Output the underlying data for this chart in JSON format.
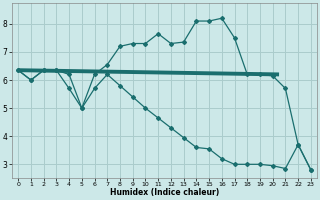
{
  "xlabel": "Humidex (Indice chaleur)",
  "background_color": "#cce8e8",
  "grid_color": "#aacccc",
  "line_color": "#1a6e6e",
  "xlim": [
    -0.5,
    23.5
  ],
  "ylim": [
    2.5,
    8.75
  ],
  "yticks": [
    3,
    4,
    5,
    6,
    7,
    8
  ],
  "xticks": [
    0,
    1,
    2,
    3,
    4,
    5,
    6,
    7,
    8,
    9,
    10,
    11,
    12,
    13,
    14,
    15,
    16,
    17,
    18,
    19,
    20,
    21,
    22,
    23
  ],
  "line1_x": [
    0,
    1,
    2,
    3,
    4,
    5,
    6,
    7,
    8,
    9,
    10,
    11,
    12,
    13,
    14,
    15,
    16,
    17,
    18,
    19,
    20,
    21,
    22,
    23
  ],
  "line1_y": [
    6.35,
    6.0,
    6.35,
    6.35,
    6.2,
    5.0,
    6.2,
    6.55,
    7.2,
    7.3,
    7.3,
    7.65,
    7.3,
    7.35,
    8.1,
    8.1,
    8.2,
    7.5,
    6.2,
    6.2,
    6.15,
    5.7,
    3.7,
    2.8
  ],
  "line2_x": [
    0,
    1,
    2,
    3,
    4,
    5,
    6,
    7,
    8,
    9,
    10,
    11,
    12,
    13,
    14,
    15,
    16,
    17,
    18,
    19,
    20,
    21,
    22,
    23
  ],
  "line2_y": [
    6.35,
    6.0,
    6.35,
    6.35,
    5.7,
    5.0,
    5.7,
    6.2,
    5.8,
    5.4,
    5.0,
    4.65,
    4.3,
    3.95,
    3.6,
    3.55,
    3.2,
    3.0,
    3.0,
    3.0,
    2.95,
    2.85,
    3.7,
    2.8
  ],
  "line3_x": [
    0,
    20.5
  ],
  "line3_y": [
    6.35,
    6.2
  ]
}
